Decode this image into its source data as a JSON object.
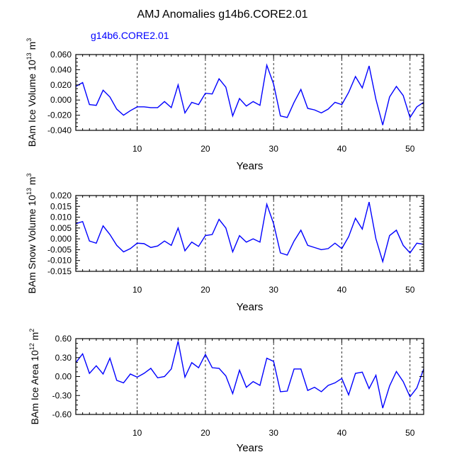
{
  "figure": {
    "title": "AMJ Anomalies g14b6.CORE2.01",
    "legend_label": "g14b6.CORE2.01",
    "line_color": "#0000ff"
  },
  "chart_data": [
    {
      "type": "line",
      "title": "",
      "xlabel": "Years",
      "ylabel": {
        "pre": "BAm Ice Volume 10",
        "sup1": "13",
        "mid": " m",
        "sup2": "3"
      },
      "xlim": [
        1,
        52
      ],
      "ylim": [
        -0.04,
        0.06
      ],
      "x_ticks": [
        10,
        20,
        30,
        40,
        50
      ],
      "y_ticks": [
        -0.04,
        -0.02,
        0.0,
        0.02,
        0.04,
        0.06
      ],
      "y_tick_labels": [
        "-0.040",
        "-0.020",
        "0.000",
        "0.020",
        "0.040",
        "0.060"
      ],
      "vlines": [
        10,
        20,
        30,
        40,
        50
      ],
      "series": [
        {
          "name": "g14b6.CORE2.01",
          "x": [
            1,
            2,
            3,
            4,
            5,
            6,
            7,
            8,
            9,
            10,
            11,
            12,
            13,
            14,
            15,
            16,
            17,
            18,
            19,
            20,
            21,
            22,
            23,
            24,
            25,
            26,
            27,
            28,
            29,
            30,
            31,
            32,
            33,
            34,
            35,
            36,
            37,
            38,
            39,
            40,
            41,
            42,
            43,
            44,
            45,
            46,
            47,
            48,
            49,
            50,
            51,
            52
          ],
          "values": [
            0.018,
            0.023,
            -0.006,
            -0.007,
            0.013,
            0.004,
            -0.012,
            -0.02,
            -0.014,
            -0.009,
            -0.009,
            -0.01,
            -0.01,
            -0.002,
            -0.01,
            0.02,
            -0.017,
            -0.003,
            -0.006,
            0.009,
            0.008,
            0.028,
            0.017,
            -0.021,
            0.002,
            -0.008,
            -0.002,
            -0.007,
            0.046,
            0.021,
            -0.021,
            -0.023,
            -0.003,
            0.014,
            -0.011,
            -0.013,
            -0.017,
            -0.012,
            -0.003,
            -0.006,
            0.01,
            0.031,
            0.016,
            0.045,
            0.001,
            -0.033,
            0.004,
            0.018,
            0.006,
            -0.023,
            -0.009,
            -0.003
          ]
        }
      ]
    },
    {
      "type": "line",
      "title": "",
      "xlabel": "Years",
      "ylabel": {
        "pre": "BAm Snow Volume 10",
        "sup1": "13",
        "mid": " m",
        "sup2": "3"
      },
      "xlim": [
        1,
        52
      ],
      "ylim": [
        -0.015,
        0.02
      ],
      "x_ticks": [
        10,
        20,
        30,
        40,
        50
      ],
      "y_ticks": [
        -0.015,
        -0.01,
        -0.005,
        0.0,
        0.005,
        0.01,
        0.015,
        0.02
      ],
      "y_tick_labels": [
        "-0.015",
        "-0.010",
        "-0.005",
        "0.000",
        "0.005",
        "0.010",
        "0.015",
        "0.020"
      ],
      "vlines": [
        10,
        20,
        30,
        40,
        50
      ],
      "series": [
        {
          "name": "g14b6.CORE2.01",
          "x": [
            1,
            2,
            3,
            4,
            5,
            6,
            7,
            8,
            9,
            10,
            11,
            12,
            13,
            14,
            15,
            16,
            17,
            18,
            19,
            20,
            21,
            22,
            23,
            24,
            25,
            26,
            27,
            28,
            29,
            30,
            31,
            32,
            33,
            34,
            35,
            36,
            37,
            38,
            39,
            40,
            41,
            42,
            43,
            44,
            45,
            46,
            47,
            48,
            49,
            50,
            51,
            52
          ],
          "values": [
            0.007,
            0.008,
            -0.001,
            -0.002,
            0.006,
            0.002,
            -0.003,
            -0.006,
            -0.0045,
            -0.002,
            -0.0022,
            -0.004,
            -0.0033,
            -0.001,
            -0.003,
            0.005,
            -0.0055,
            -0.0015,
            -0.0035,
            0.0015,
            0.002,
            0.009,
            0.005,
            -0.006,
            0.0015,
            -0.0015,
            0.0,
            -0.0015,
            0.016,
            0.007,
            -0.0065,
            -0.0075,
            -0.001,
            0.004,
            -0.003,
            -0.004,
            -0.005,
            -0.0045,
            -0.002,
            -0.0045,
            0.001,
            0.0095,
            0.0045,
            0.017,
            0.0,
            -0.0105,
            0.0015,
            0.004,
            -0.003,
            -0.0065,
            -0.002,
            -0.0025
          ]
        }
      ]
    },
    {
      "type": "line",
      "title": "",
      "xlabel": "Years",
      "ylabel": {
        "pre": "BAm Ice Area 10",
        "sup1": "12",
        "mid": " m",
        "sup2": "2"
      },
      "xlim": [
        1,
        52
      ],
      "ylim": [
        -0.6,
        0.6
      ],
      "x_ticks": [
        10,
        20,
        30,
        40,
        50
      ],
      "y_ticks": [
        -0.6,
        -0.3,
        0.0,
        0.3,
        0.6
      ],
      "y_tick_labels": [
        "-0.60",
        "-0.30",
        "0.00",
        "0.30",
        "0.60"
      ],
      "vlines": [
        10,
        20,
        30,
        40,
        50
      ],
      "series": [
        {
          "name": "g14b6.CORE2.01",
          "x": [
            1,
            2,
            3,
            4,
            5,
            6,
            7,
            8,
            9,
            10,
            11,
            12,
            13,
            14,
            15,
            16,
            17,
            18,
            19,
            20,
            21,
            22,
            23,
            24,
            25,
            26,
            27,
            28,
            29,
            30,
            31,
            32,
            33,
            34,
            35,
            36,
            37,
            38,
            39,
            40,
            41,
            42,
            43,
            44,
            45,
            46,
            47,
            48,
            49,
            50,
            51,
            52
          ],
          "values": [
            0.22,
            0.36,
            0.05,
            0.17,
            0.04,
            0.29,
            -0.06,
            -0.1,
            0.04,
            -0.01,
            0.05,
            0.13,
            -0.02,
            0.0,
            0.12,
            0.56,
            -0.01,
            0.22,
            0.14,
            0.35,
            0.14,
            0.13,
            0.01,
            -0.27,
            0.1,
            -0.17,
            -0.08,
            -0.14,
            0.29,
            0.24,
            -0.24,
            -0.23,
            0.12,
            0.12,
            -0.22,
            -0.17,
            -0.24,
            -0.14,
            -0.1,
            -0.03,
            -0.29,
            0.05,
            0.07,
            -0.19,
            0.02,
            -0.5,
            -0.15,
            0.08,
            -0.08,
            -0.32,
            -0.18,
            0.12
          ]
        }
      ]
    }
  ]
}
